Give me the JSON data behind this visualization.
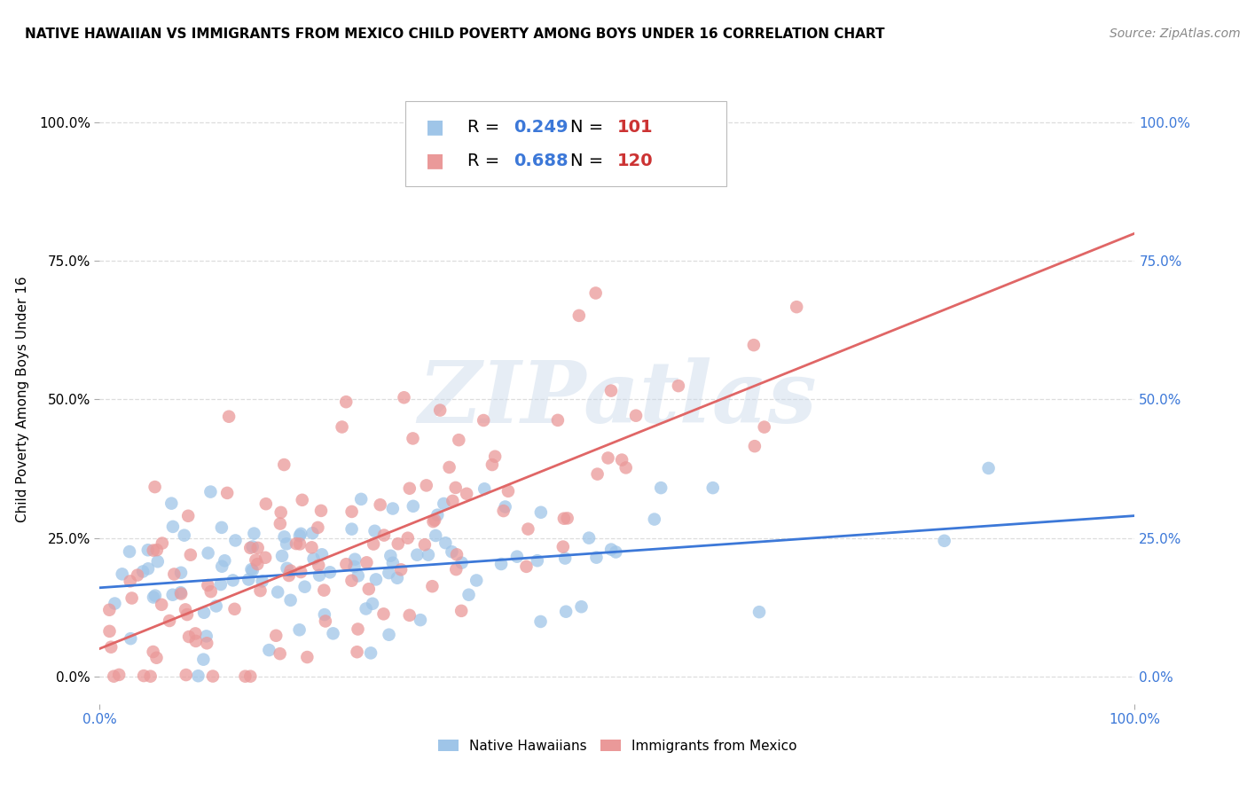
{
  "title": "NATIVE HAWAIIAN VS IMMIGRANTS FROM MEXICO CHILD POVERTY AMONG BOYS UNDER 16 CORRELATION CHART",
  "source": "Source: ZipAtlas.com",
  "ylabel": "Child Poverty Among Boys Under 16",
  "xlim": [
    0.0,
    1.0
  ],
  "ylim": [
    -0.05,
    1.05
  ],
  "ytick_labels": [
    "0.0%",
    "25.0%",
    "50.0%",
    "75.0%",
    "100.0%"
  ],
  "ytick_vals": [
    0.0,
    0.25,
    0.5,
    0.75,
    1.0
  ],
  "xtick_labels": [
    "0.0%",
    "100.0%"
  ],
  "xtick_vals": [
    0.0,
    1.0
  ],
  "blue_color": "#9fc5e8",
  "pink_color": "#ea9999",
  "blue_line_color": "#3c78d8",
  "pink_line_color": "#e06666",
  "legend_blue_label": "Native Hawaiians",
  "legend_pink_label": "Immigrants from Mexico",
  "R_blue": "0.249",
  "N_blue": "101",
  "R_pink": "0.688",
  "N_pink": "120",
  "watermark_text": "ZIPatlas",
  "background_color": "#ffffff",
  "grid_color": "#dddddd",
  "blue_slope": 0.13,
  "blue_intercept": 0.16,
  "pink_slope": 0.75,
  "pink_intercept": 0.05,
  "title_color": "#000000",
  "source_color": "#888888",
  "rn_text_color": "#3c78d8",
  "n_value_color": "#cc3333"
}
